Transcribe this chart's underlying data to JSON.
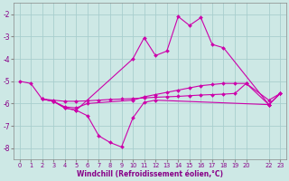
{
  "xlabel": "Windchill (Refroidissement éolien,°C)",
  "background_color": "#cde8e5",
  "grid_color": "#a8cece",
  "line_color": "#cc00aa",
  "xlim": [
    -0.5,
    23.5
  ],
  "ylim": [
    -8.5,
    -1.5
  ],
  "yticks": [
    -8,
    -7,
    -6,
    -5,
    -4,
    -3,
    -2
  ],
  "xtick_positions": [
    0,
    1,
    2,
    3,
    4,
    5,
    6,
    7,
    8,
    9,
    10,
    11,
    12,
    13,
    14,
    15,
    16,
    17,
    18,
    19,
    20,
    22,
    23
  ],
  "xtick_labels": [
    "0",
    "1",
    "2",
    "3",
    "4",
    "5",
    "6",
    "7",
    "8",
    "9",
    "10",
    "11",
    "12",
    "13",
    "14",
    "15",
    "16",
    "17",
    "18",
    "19",
    "20",
    "22",
    "23"
  ],
  "lines": [
    {
      "x": [
        0,
        1,
        2,
        3,
        4,
        5,
        6,
        10,
        11,
        12,
        13,
        14,
        15,
        16,
        17,
        18,
        19,
        20,
        22,
        23
      ],
      "y": [
        -5.0,
        -5.1,
        -5.8,
        -5.9,
        -6.15,
        -6.2,
        -6.0,
        -5.85,
        -5.7,
        -5.6,
        -5.5,
        -5.4,
        -5.3,
        -5.2,
        -5.15,
        -5.1,
        -5.1,
        -5.1,
        -5.85,
        -5.55
      ]
    },
    {
      "x": [
        2,
        3,
        4,
        5,
        6,
        7,
        8,
        9,
        10,
        11,
        12,
        22,
        23
      ],
      "y": [
        -5.8,
        -5.9,
        -6.2,
        -6.3,
        -6.55,
        -7.45,
        -7.75,
        -7.95,
        -6.65,
        -5.95,
        -5.85,
        -6.05,
        -5.55
      ]
    },
    {
      "x": [
        2,
        3,
        4,
        5,
        10,
        11,
        12,
        13,
        14,
        15,
        16,
        17,
        18,
        22,
        23
      ],
      "y": [
        -5.8,
        -5.9,
        -6.2,
        -6.3,
        -4.0,
        -3.05,
        -3.85,
        -3.65,
        -2.1,
        -2.5,
        -2.15,
        -3.35,
        -3.5,
        -6.05,
        -5.55
      ]
    },
    {
      "x": [
        2,
        3,
        4,
        5,
        6,
        7,
        8,
        9,
        10,
        11,
        12,
        13,
        14,
        15,
        16,
        17,
        18,
        19,
        20,
        22,
        23
      ],
      "y": [
        -5.8,
        -5.85,
        -5.9,
        -5.9,
        -5.88,
        -5.85,
        -5.82,
        -5.8,
        -5.78,
        -5.75,
        -5.72,
        -5.7,
        -5.68,
        -5.65,
        -5.62,
        -5.6,
        -5.58,
        -5.55,
        -5.1,
        -6.05,
        -5.55
      ]
    }
  ]
}
